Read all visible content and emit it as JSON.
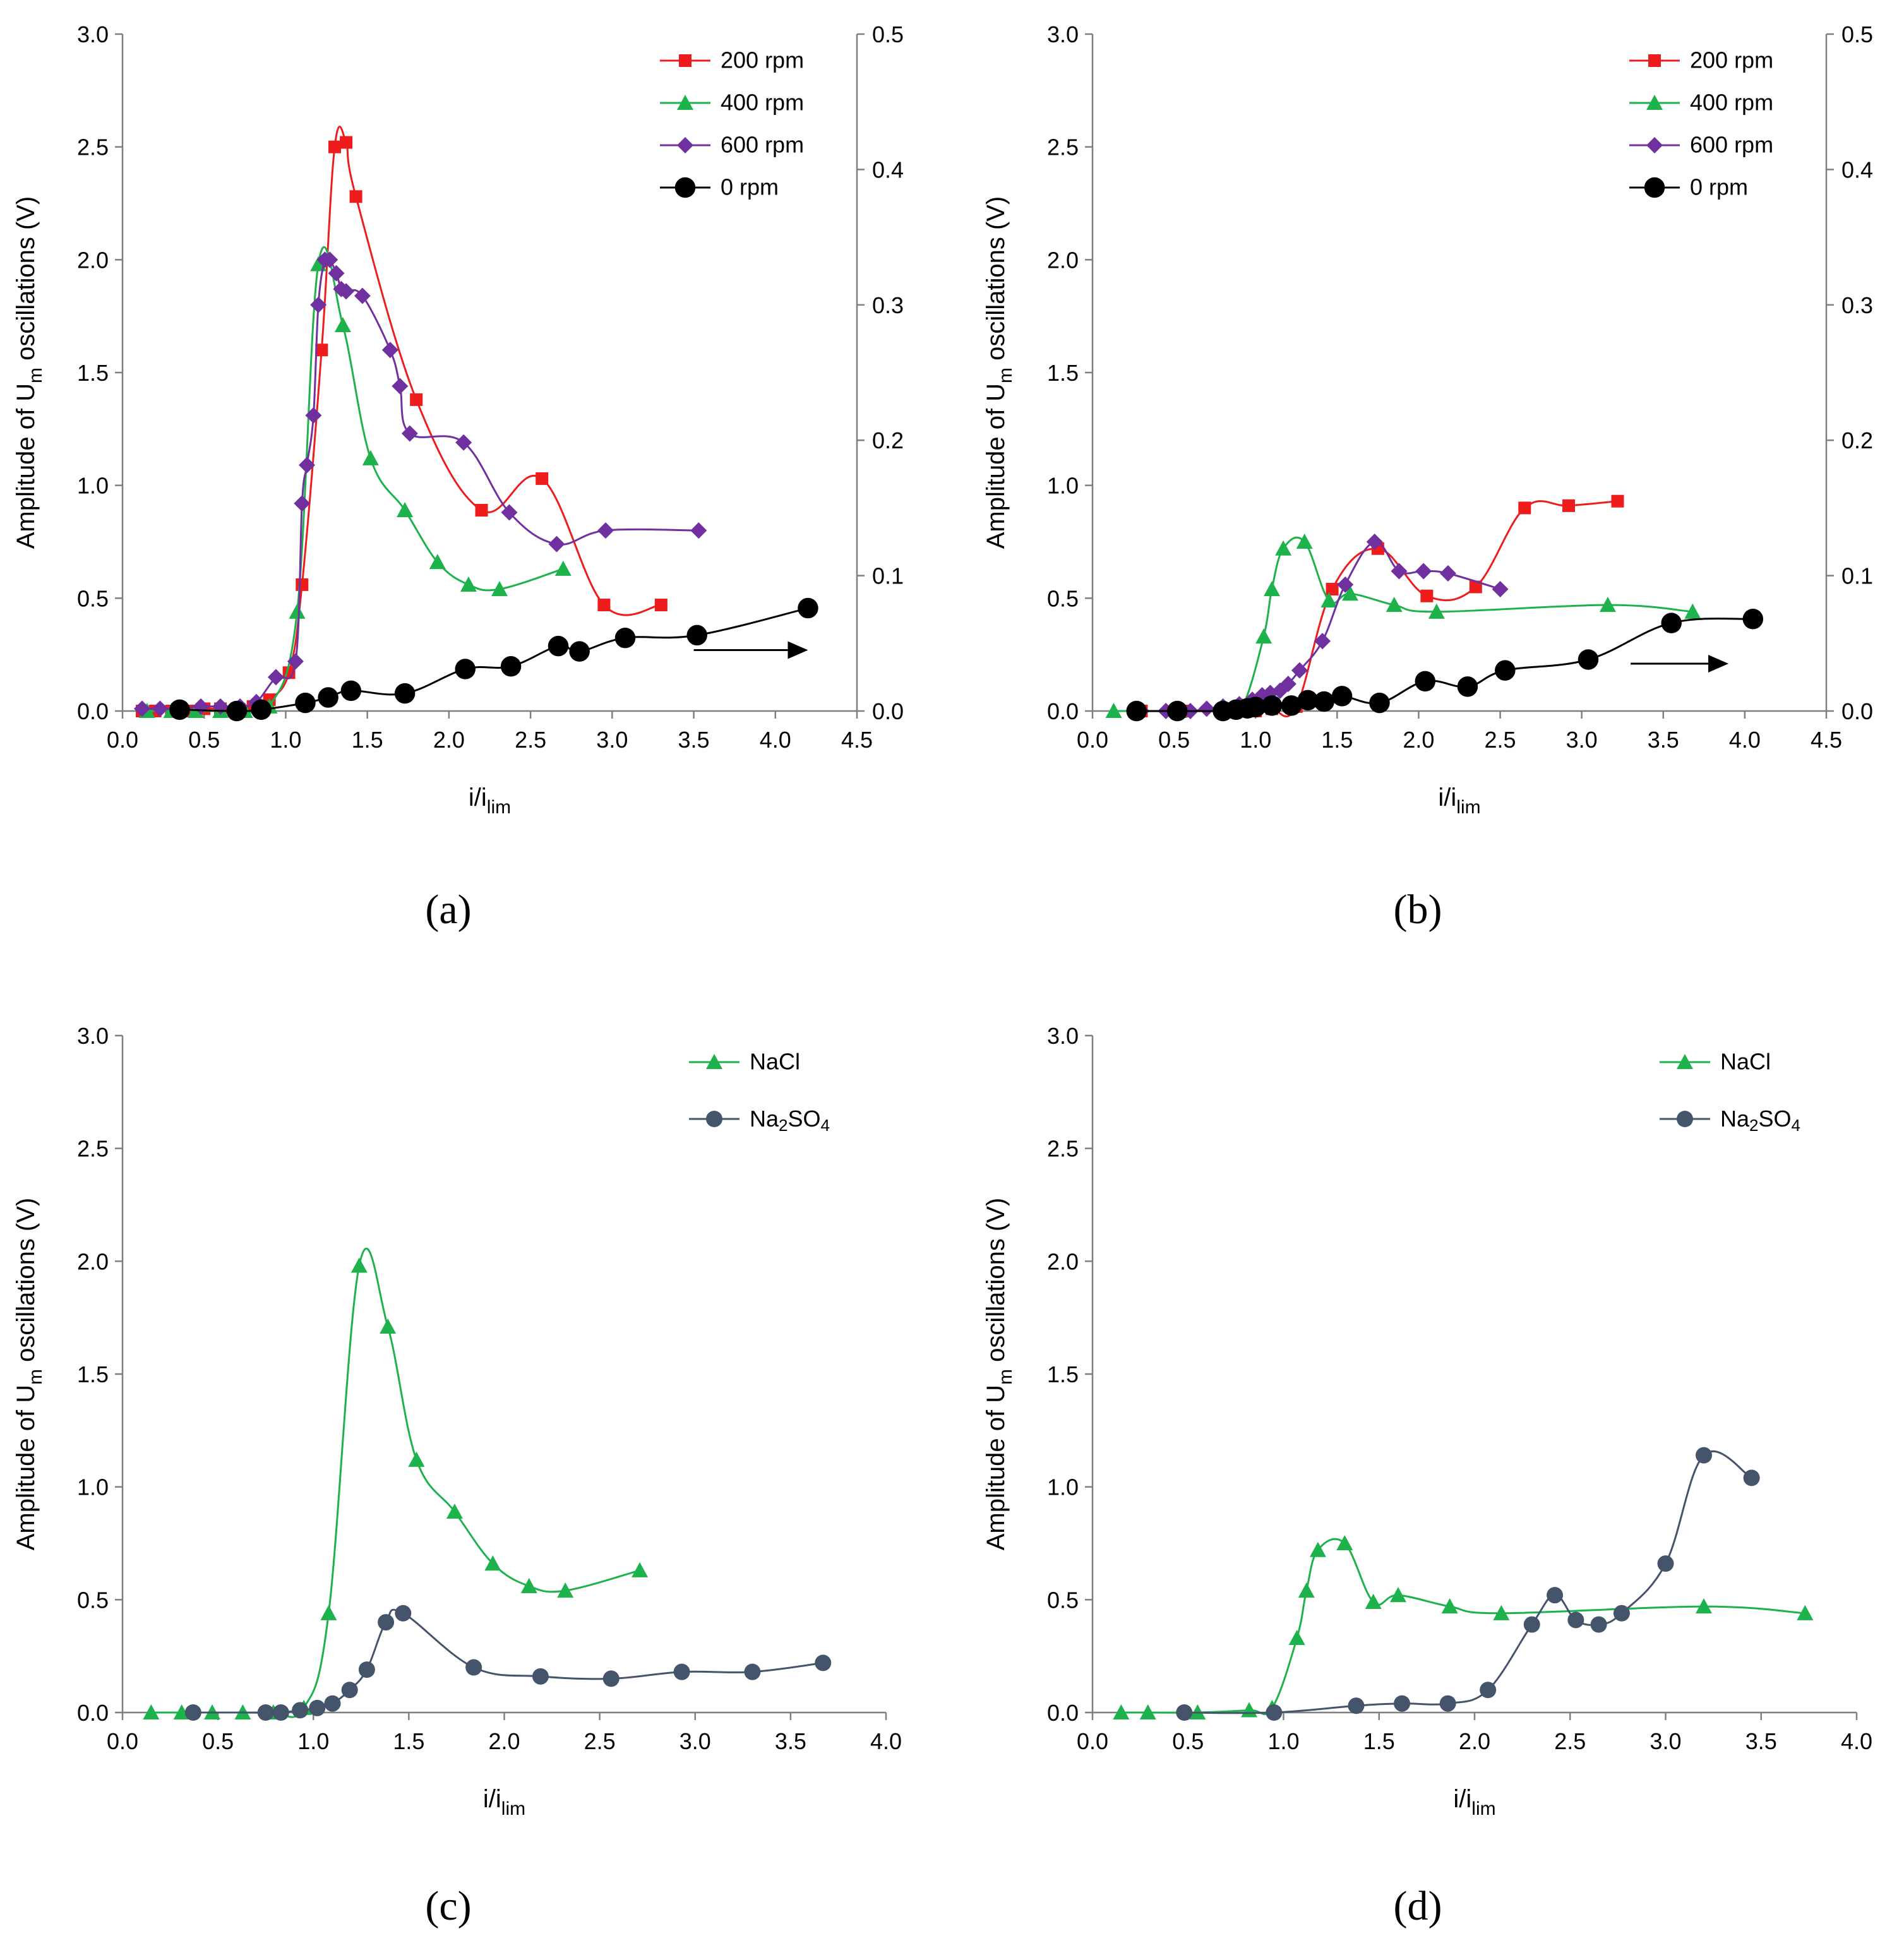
{
  "figure": {
    "panels": [
      "(a)",
      "(b)",
      "(c)",
      "(d)"
    ]
  },
  "chart_data": [
    {
      "type": "line",
      "panel": "(a)",
      "xlabel": "i/i_lim",
      "ylabel": "Amplitude of U_m oscillations (V)",
      "xlim": [
        0,
        4.5
      ],
      "xticks": [
        "0.0",
        "0.5",
        "1.0",
        "1.5",
        "2.0",
        "2.5",
        "3.0",
        "3.5",
        "4.0",
        "4.5"
      ],
      "ylim": [
        0,
        3.0
      ],
      "yticks": [
        "0.0",
        "0.5",
        "1.0",
        "1.5",
        "2.0",
        "2.5",
        "3.0"
      ],
      "y2lim": [
        0,
        0.5
      ],
      "y2ticks": [
        "0.0",
        "0.1",
        "0.2",
        "0.3",
        "0.4",
        "0.5"
      ],
      "legend": "top-right",
      "arrow": {
        "x1": 3.5,
        "x2": 4.2,
        "y2val": 0.045
      },
      "series": [
        {
          "name": "200 rpm",
          "color": "#ee1c1c",
          "marker": "square",
          "axis": "left",
          "x": [
            0.12,
            0.2,
            0.3,
            0.4,
            0.5,
            0.6,
            0.7,
            0.8,
            0.9,
            1.02,
            1.1,
            1.22,
            1.3,
            1.37,
            1.43,
            1.8,
            2.2,
            2.57,
            2.95,
            3.3
          ],
          "y": [
            0.0,
            0.0,
            0.0,
            0.0,
            0.01,
            0.01,
            0.01,
            0.02,
            0.05,
            0.17,
            0.56,
            1.6,
            2.5,
            2.52,
            2.28,
            1.38,
            0.89,
            1.03,
            0.47,
            0.47
          ]
        },
        {
          "name": "400 rpm",
          "color": "#1db24b",
          "marker": "triangle",
          "axis": "left",
          "x": [
            0.15,
            0.3,
            0.45,
            0.6,
            0.75,
            0.9,
            1.07,
            1.2,
            1.35,
            1.52,
            1.73,
            1.93,
            2.12,
            2.31,
            2.7
          ],
          "y": [
            0.0,
            0.0,
            0.0,
            0.0,
            0.0,
            0.02,
            0.44,
            1.98,
            1.71,
            1.12,
            0.89,
            0.66,
            0.56,
            0.54,
            0.63
          ]
        },
        {
          "name": "600 rpm",
          "color": "#7030a0",
          "marker": "diamond",
          "axis": "left",
          "x": [
            0.12,
            0.23,
            0.35,
            0.48,
            0.6,
            0.72,
            0.82,
            0.94,
            1.06,
            1.1,
            1.13,
            1.17,
            1.2,
            1.24,
            1.27,
            1.31,
            1.34,
            1.37,
            1.47,
            1.64,
            1.7,
            1.76,
            2.09,
            2.37,
            2.66,
            2.96,
            3.53
          ],
          "y": [
            0.01,
            0.01,
            0.01,
            0.02,
            0.02,
            0.02,
            0.04,
            0.15,
            0.22,
            0.92,
            1.09,
            1.31,
            1.8,
            2.0,
            2.0,
            1.94,
            1.87,
            1.86,
            1.84,
            1.6,
            1.44,
            1.23,
            1.19,
            0.88,
            0.74,
            0.8,
            0.8
          ]
        },
        {
          "name": "0 rpm",
          "color": "#000000",
          "marker": "circle",
          "axis": "right",
          "x": [
            0.35,
            0.7,
            0.85,
            1.12,
            1.26,
            1.4,
            1.73,
            2.1,
            2.38,
            2.67,
            2.8,
            3.08,
            3.52,
            4.2
          ],
          "y": [
            0.001,
            0.0,
            0.001,
            0.006,
            0.01,
            0.015,
            0.013,
            0.031,
            0.033,
            0.048,
            0.044,
            0.054,
            0.056,
            0.076
          ]
        }
      ]
    },
    {
      "type": "line",
      "panel": "(b)",
      "xlabel": "i/i_lim",
      "ylabel": "Amplitude of U_m oscillations (V)",
      "xlim": [
        0,
        4.5
      ],
      "xticks": [
        "0.0",
        "0.5",
        "1.0",
        "1.5",
        "2.0",
        "2.5",
        "3.0",
        "3.5",
        "4.0",
        "4.5"
      ],
      "ylim": [
        0,
        3.0
      ],
      "yticks": [
        "0.0",
        "0.5",
        "1.0",
        "1.5",
        "2.0",
        "2.5",
        "3.0"
      ],
      "y2lim": [
        0,
        0.5
      ],
      "y2ticks": [
        "0.0",
        "0.1",
        "0.2",
        "0.3",
        "0.4",
        "0.5"
      ],
      "legend": "top-right",
      "arrow": {
        "x1": 3.3,
        "x2": 3.9,
        "y2val": 0.035
      },
      "series": [
        {
          "name": "200 rpm",
          "color": "#ee1c1c",
          "marker": "square",
          "axis": "left",
          "x": [
            0.3,
            0.55,
            0.8,
            1.0,
            1.1,
            1.25,
            1.47,
            1.75,
            2.05,
            2.35,
            2.65,
            2.92,
            3.22
          ],
          "y": [
            0.0,
            0.0,
            0.0,
            0.0,
            0.01,
            0.02,
            0.54,
            0.72,
            0.51,
            0.55,
            0.9,
            0.91,
            0.93
          ]
        },
        {
          "name": "400 rpm",
          "color": "#1db24b",
          "marker": "triangle",
          "axis": "left",
          "x": [
            0.13,
            0.27,
            0.53,
            0.81,
            0.92,
            1.05,
            1.1,
            1.17,
            1.3,
            1.45,
            1.58,
            1.85,
            2.11,
            3.16,
            3.68
          ],
          "y": [
            0.0,
            0.0,
            0.0,
            0.01,
            0.02,
            0.33,
            0.54,
            0.72,
            0.75,
            0.49,
            0.52,
            0.47,
            0.44,
            0.47,
            0.44
          ]
        },
        {
          "name": "600 rpm",
          "color": "#7030a0",
          "marker": "diamond",
          "axis": "left",
          "x": [
            0.3,
            0.45,
            0.6,
            0.7,
            0.8,
            0.9,
            0.98,
            1.04,
            1.09,
            1.15,
            1.2,
            1.27,
            1.41,
            1.55,
            1.73,
            1.88,
            2.03,
            2.18,
            2.5
          ],
          "y": [
            0.0,
            0.0,
            0.0,
            0.01,
            0.02,
            0.03,
            0.05,
            0.07,
            0.08,
            0.09,
            0.12,
            0.18,
            0.31,
            0.56,
            0.75,
            0.62,
            0.62,
            0.61,
            0.54
          ]
        },
        {
          "name": "0 rpm",
          "color": "#000000",
          "marker": "circle",
          "axis": "right",
          "x": [
            0.27,
            0.52,
            0.8,
            0.88,
            0.95,
            1.0,
            1.1,
            1.22,
            1.32,
            1.42,
            1.53,
            1.76,
            2.04,
            2.3,
            2.53,
            3.04,
            3.55,
            4.05
          ],
          "y": [
            0.0,
            0.0,
            0.0,
            0.001,
            0.002,
            0.003,
            0.004,
            0.004,
            0.008,
            0.007,
            0.011,
            0.006,
            0.022,
            0.018,
            0.03,
            0.038,
            0.065,
            0.068
          ]
        }
      ]
    },
    {
      "type": "line",
      "panel": "(c)",
      "xlabel": "i/i_lim",
      "ylabel": "Amplitude of U_m oscillations (V)",
      "xlim": [
        0,
        4.0
      ],
      "xticks": [
        "0.0",
        "0.5",
        "1.0",
        "1.5",
        "2.0",
        "2.5",
        "3.0",
        "3.5",
        "4.0"
      ],
      "ylim": [
        0,
        3.0
      ],
      "yticks": [
        "0.0",
        "0.5",
        "1.0",
        "1.5",
        "2.0",
        "2.5",
        "3.0"
      ],
      "legend": "top-right",
      "series": [
        {
          "name": "NaCl",
          "color": "#1db24b",
          "marker": "triangle",
          "axis": "left",
          "x": [
            0.15,
            0.31,
            0.47,
            0.63,
            0.79,
            0.95,
            1.08,
            1.24,
            1.39,
            1.54,
            1.74,
            1.94,
            2.13,
            2.32,
            2.71
          ],
          "y": [
            0.0,
            0.0,
            0.0,
            0.0,
            0.0,
            0.02,
            0.44,
            1.98,
            1.71,
            1.12,
            0.89,
            0.66,
            0.56,
            0.54,
            0.63
          ]
        },
        {
          "name": "Na₂SO₄",
          "color": "#44546a",
          "marker": "circle",
          "axis": "left",
          "x": [
            0.37,
            0.75,
            0.83,
            0.93,
            1.02,
            1.1,
            1.19,
            1.28,
            1.38,
            1.47,
            1.84,
            2.19,
            2.56,
            2.93,
            3.3,
            3.67
          ],
          "y": [
            0.0,
            0.0,
            0.0,
            0.01,
            0.02,
            0.04,
            0.1,
            0.19,
            0.4,
            0.44,
            0.2,
            0.16,
            0.15,
            0.18,
            0.18,
            0.22
          ]
        }
      ]
    },
    {
      "type": "line",
      "panel": "(d)",
      "xlabel": "i/i_lim",
      "ylabel": "Amplitude of U_m oscillations (V)",
      "xlim": [
        0,
        4.0
      ],
      "xticks": [
        "0.0",
        "0.5",
        "1.0",
        "1.5",
        "2.0",
        "2.5",
        "3.0",
        "3.5",
        "4.0"
      ],
      "ylim": [
        0,
        3.0
      ],
      "yticks": [
        "0.0",
        "0.5",
        "1.0",
        "1.5",
        "2.0",
        "2.5",
        "3.0"
      ],
      "legend": "top-right",
      "series": [
        {
          "name": "NaCl",
          "color": "#1db24b",
          "marker": "triangle",
          "axis": "left",
          "x": [
            0.15,
            0.29,
            0.55,
            0.82,
            0.94,
            1.07,
            1.12,
            1.18,
            1.32,
            1.47,
            1.6,
            1.87,
            2.14,
            3.2,
            3.73
          ],
          "y": [
            0.0,
            0.0,
            0.0,
            0.01,
            0.02,
            0.33,
            0.54,
            0.72,
            0.75,
            0.49,
            0.52,
            0.47,
            0.44,
            0.47,
            0.44
          ]
        },
        {
          "name": "Na₂SO₄",
          "color": "#44546a",
          "marker": "circle",
          "axis": "left",
          "x": [
            0.48,
            0.95,
            1.38,
            1.62,
            1.86,
            2.07,
            2.3,
            2.42,
            2.53,
            2.65,
            2.77,
            3.0,
            3.2,
            3.45
          ],
          "y": [
            0.0,
            0.0,
            0.03,
            0.04,
            0.04,
            0.1,
            0.39,
            0.52,
            0.41,
            0.39,
            0.44,
            0.66,
            1.14,
            1.04
          ]
        }
      ]
    }
  ]
}
